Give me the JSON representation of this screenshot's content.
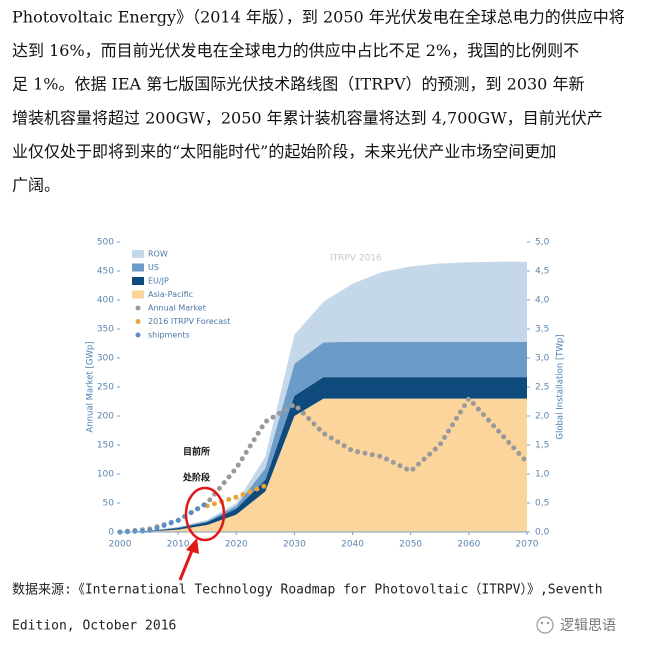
{
  "paragraph": [
    "Photovoltaic Energy》（2014 年版），到 2050 年光伏发电在全球总电力的供应中将",
    "达到 16%，而目前光伏发电在全球电力的供应中占比不足 2%，我国的比例则不",
    "足 1%。依据 IEA 第七版国际光伏技术路线图（ITRPV）的预测，到 2030 年新",
    "增装机容量将超过 200GW，2050 年累计装机容量将达到 4,700GW，目前光伏产",
    "业仅仅处于即将到来的“太阳能时代”的起始阶段，未来光伏产业市场空间更加",
    "广阔。"
  ],
  "chart_data": {
    "type": "area",
    "watermark": "ITRPV 2016",
    "y_label": "Annual Market [GWp]",
    "y2_label": "Global Installation [TWp]",
    "annotation": [
      "目前所",
      "处阶段"
    ],
    "x": [
      2000,
      2005,
      2010,
      2015,
      2020,
      2025,
      2030,
      2035,
      2040,
      2045,
      2050,
      2055,
      2060,
      2065,
      2070
    ],
    "xlim": [
      2000,
      2070
    ],
    "xticks": [
      2000,
      2010,
      2020,
      2030,
      2040,
      2050,
      2060,
      2070
    ],
    "ylim": [
      0,
      500
    ],
    "yticks": [
      0,
      50,
      100,
      150,
      200,
      250,
      300,
      350,
      400,
      450,
      500
    ],
    "y2lim": [
      0,
      5
    ],
    "y2ticks": [
      {
        "value": 0,
        "label": "0,0"
      },
      {
        "value": 0.5,
        "label": "0,5"
      },
      {
        "value": 1,
        "label": "1,0"
      },
      {
        "value": 1.5,
        "label": "1,5"
      },
      {
        "value": 2,
        "label": "2,0"
      },
      {
        "value": 2.5,
        "label": "2,5"
      },
      {
        "value": 3,
        "label": "3,0"
      },
      {
        "value": 3.5,
        "label": "3,5"
      },
      {
        "value": 4,
        "label": "4,0"
      },
      {
        "value": 4.5,
        "label": "4,5"
      },
      {
        "value": 5,
        "label": "5,0"
      }
    ],
    "legend": "top-left",
    "series": [
      {
        "name": "ROW",
        "kind": "area",
        "axis": "y2",
        "color": "#c4d8ea",
        "values": [
          0,
          0,
          0.01,
          0.02,
          0.05,
          0.2,
          0.5,
          0.7,
          1.0,
          1.2,
          1.3,
          1.35,
          1.37,
          1.38,
          1.38
        ]
      },
      {
        "name": "US",
        "kind": "area",
        "axis": "y2",
        "color": "#6b9bc9",
        "values": [
          0,
          0,
          0.01,
          0.02,
          0.05,
          0.2,
          0.55,
          0.6,
          0.61,
          0.61,
          0.61,
          0.61,
          0.61,
          0.61,
          0.61
        ]
      },
      {
        "name": "EU/JP",
        "kind": "area",
        "axis": "y2",
        "color": "#0e4a7c",
        "values": [
          0,
          0.01,
          0.03,
          0.05,
          0.1,
          0.2,
          0.35,
          0.37,
          0.37,
          0.37,
          0.37,
          0.37,
          0.37,
          0.37,
          0.37
        ]
      },
      {
        "name": "Asia-Pacific",
        "kind": "area",
        "axis": "y2",
        "color": "#fbd59c",
        "values": [
          0,
          0.01,
          0.04,
          0.12,
          0.3,
          0.7,
          2.0,
          2.3,
          2.3,
          2.3,
          2.3,
          2.3,
          2.3,
          2.3,
          2.3
        ]
      },
      {
        "name": "Annual Market",
        "kind": "dots",
        "color": "#9a9a9a",
        "values": [
          0,
          5,
          20,
          50,
          110,
          190,
          220,
          170,
          140,
          130,
          105,
          150,
          230,
          175,
          120
        ]
      },
      {
        "name": "2016 ITRPV Forecast",
        "kind": "dots",
        "color": "#e8a33a",
        "values": [
          null,
          null,
          null,
          45,
          60,
          80,
          null,
          null,
          null,
          null,
          null,
          null,
          null,
          null,
          null
        ]
      },
      {
        "name": "shipments",
        "kind": "dots",
        "color": "#5b8fc4",
        "values": [
          0,
          2,
          20,
          50,
          null,
          null,
          null,
          null,
          null,
          null,
          null,
          null,
          null,
          null,
          null
        ]
      }
    ]
  },
  "caption": [
    "数据来源:《International Technology Roadmap for Photovoltaic（ITRPV）》,Seventh",
    "Edition, October 2016"
  ],
  "watermark": "逻辑思语"
}
